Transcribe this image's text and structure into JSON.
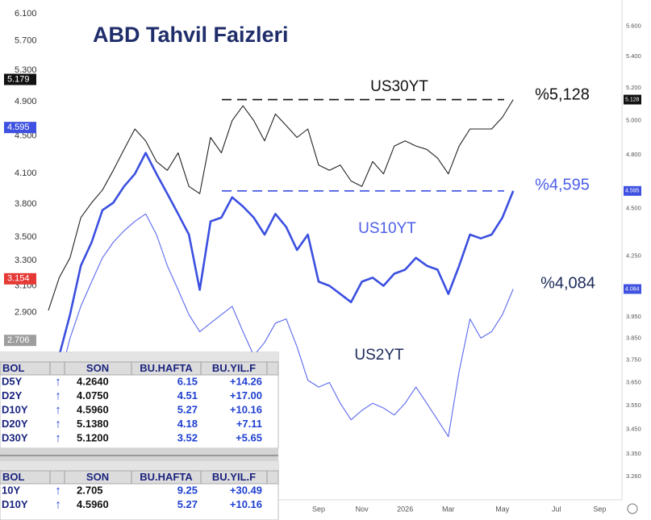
{
  "chart_data": {
    "type": "line",
    "title": "ABD Tahvil Faizleri",
    "log_scale": true,
    "y2_log_scale": true,
    "ylim": [
      1.82,
      6.31
    ],
    "yticks": [
      {
        "value": 6.1,
        "label": "6.100"
      },
      {
        "value": 5.7,
        "label": "5.700"
      },
      {
        "value": 5.3,
        "label": "5.300"
      },
      {
        "value": 4.9,
        "label": "4.900"
      },
      {
        "value": 4.5,
        "label": "4.500"
      },
      {
        "value": 4.1,
        "label": "4.100"
      },
      {
        "value": 3.8,
        "label": "3.800"
      },
      {
        "value": 3.5,
        "label": "3.500"
      },
      {
        "value": 3.3,
        "label": "3.300"
      },
      {
        "value": 3.1,
        "label": "3.100"
      },
      {
        "value": 2.9,
        "label": "2.900"
      }
    ],
    "y2lim": [
      3.17,
      5.78
    ],
    "y2ticks": [
      {
        "value": 5.6,
        "label": "5.600"
      },
      {
        "value": 5.4,
        "label": "5.400"
      },
      {
        "value": 5.2,
        "label": "5.200"
      },
      {
        "value": 5.0,
        "label": "5.000"
      },
      {
        "value": 4.8,
        "label": "4.800"
      },
      {
        "value": 4.5,
        "label": "4.500"
      },
      {
        "value": 4.25,
        "label": "4.250"
      },
      {
        "value": 3.95,
        "label": "3.950"
      },
      {
        "value": 3.85,
        "label": "3.850"
      },
      {
        "value": 3.75,
        "label": "3.750"
      },
      {
        "value": 3.65,
        "label": "3.650"
      },
      {
        "value": 3.55,
        "label": "3.550"
      },
      {
        "value": 3.45,
        "label": "3.450"
      },
      {
        "value": 3.35,
        "label": "3.350"
      },
      {
        "value": 3.26,
        "label": "3.260"
      }
    ],
    "left_tags": [
      {
        "value": 5.179,
        "label": "5.179",
        "color": "#111111"
      },
      {
        "value": 4.595,
        "label": "4.595",
        "color": "#3f51e0"
      },
      {
        "value": 3.154,
        "label": "3.154",
        "color": "#e53935"
      },
      {
        "value": 2.706,
        "label": "2.706",
        "color": "#9e9e9e"
      }
    ],
    "right_tags": [
      {
        "value": 5.128,
        "label": "5.128",
        "color": "#111111"
      },
      {
        "value": 4.595,
        "label": "4.595",
        "color": "#3f51e0"
      },
      {
        "value": 4.084,
        "label": "4.084",
        "color": "#3f51e0"
      }
    ],
    "categories": [
      null,
      null,
      null,
      null,
      null,
      null,
      null,
      null,
      null,
      null,
      null,
      null,
      null,
      null,
      null,
      null,
      null,
      null,
      null,
      null,
      null,
      null,
      null,
      null,
      null,
      "Sep",
      null,
      null,
      null,
      "Nov",
      null,
      null,
      null,
      "2026",
      null,
      null,
      null,
      "Mar",
      null,
      null,
      null,
      null,
      "May",
      null,
      null,
      null,
      null,
      "Jul",
      null,
      null,
      null,
      "Sep",
      null,
      null
    ],
    "series": [
      {
        "name": "US30YT",
        "color": "#222222",
        "axis": "y2",
        "values": [
          3.98,
          4.14,
          4.24,
          4.45,
          4.53,
          4.6,
          4.71,
          4.83,
          4.95,
          4.88,
          4.76,
          4.71,
          4.81,
          4.62,
          4.58,
          4.9,
          4.81,
          5.0,
          5.09,
          5.0,
          4.88,
          5.04,
          4.97,
          4.9,
          4.95,
          4.74,
          4.71,
          4.74,
          4.65,
          4.62,
          4.76,
          4.69,
          4.85,
          4.88,
          4.85,
          4.83,
          4.78,
          4.69,
          4.85,
          4.95,
          4.95,
          4.95,
          5.02,
          5.128,
          null,
          null,
          null,
          null,
          null,
          null,
          null,
          null,
          null,
          null
        ]
      },
      {
        "name": "US10YT",
        "color": "#3b4fe0",
        "axis": "y2",
        "values": [
          3.66,
          3.77,
          3.96,
          4.2,
          4.32,
          4.49,
          4.53,
          4.62,
          4.69,
          4.81,
          4.69,
          4.58,
          4.47,
          4.36,
          4.08,
          4.43,
          4.45,
          4.56,
          4.51,
          4.45,
          4.36,
          4.47,
          4.4,
          4.28,
          4.36,
          4.12,
          4.1,
          4.06,
          4.02,
          4.12,
          4.14,
          4.1,
          4.16,
          4.18,
          4.24,
          4.2,
          4.18,
          4.06,
          4.2,
          4.36,
          4.34,
          4.36,
          4.45,
          4.595,
          null,
          null,
          null,
          null,
          null,
          null,
          null,
          null,
          null,
          null
        ]
      },
      {
        "name": "US2YT",
        "color": "#5a69ee",
        "axis": "y2",
        "values": [
          3.56,
          3.66,
          3.85,
          4.0,
          4.12,
          4.24,
          4.32,
          4.38,
          4.43,
          4.47,
          4.36,
          4.2,
          4.08,
          3.96,
          3.88,
          3.92,
          3.96,
          4.0,
          3.88,
          3.77,
          3.83,
          3.92,
          3.94,
          3.81,
          3.66,
          3.63,
          3.65,
          3.56,
          3.49,
          3.53,
          3.56,
          3.54,
          3.51,
          3.56,
          3.63,
          3.56,
          3.49,
          3.42,
          3.7,
          3.94,
          3.85,
          3.88,
          3.96,
          4.084,
          null,
          null,
          null,
          null,
          null,
          null,
          null,
          null,
          null,
          null
        ]
      }
    ],
    "reference_lines": [
      {
        "value": 5.128,
        "color": "#111111"
      },
      {
        "value": 4.595,
        "color": "#3b4fe0"
      }
    ],
    "annotations": [
      {
        "text": "%5,128",
        "color": "#111111"
      },
      {
        "text": "%4,595",
        "color": "#4d5ee8"
      },
      {
        "text": "%4,084",
        "color": "#1c2a5a"
      }
    ]
  },
  "tables": [
    {
      "header": [
        "BOL",
        "SON",
        "BU.HAFTA",
        "BU.YIL.F"
      ],
      "rows": [
        {
          "symbol": "D5Y",
          "arrow": "↑",
          "son": "4.2640",
          "hafta": "6.15",
          "yil": "+14.26"
        },
        {
          "symbol": "D2Y",
          "arrow": "↑",
          "son": "4.0750",
          "hafta": "4.51",
          "yil": "+17.00"
        },
        {
          "symbol": "D10Y",
          "arrow": "↑",
          "son": "4.5960",
          "hafta": "5.27",
          "yil": "+10.16"
        },
        {
          "symbol": "D20Y",
          "arrow": "↑",
          "son": "5.1380",
          "hafta": "4.18",
          "yil": "+7.11"
        },
        {
          "symbol": "D30Y",
          "arrow": "↑",
          "son": "5.1200",
          "hafta": "3.52",
          "yil": "+5.65"
        }
      ]
    },
    {
      "header": [
        "BOL",
        "SON",
        "BU.HAFTA",
        "BU.YIL.F"
      ],
      "rows": [
        {
          "symbol": "10Y",
          "arrow": "↑",
          "son": "2.705",
          "hafta": "9.25",
          "yil": "+30.49"
        },
        {
          "symbol": "D10Y",
          "arrow": "↑",
          "son": "4.5960",
          "hafta": "5.27",
          "yil": "+10.16"
        }
      ]
    }
  ]
}
